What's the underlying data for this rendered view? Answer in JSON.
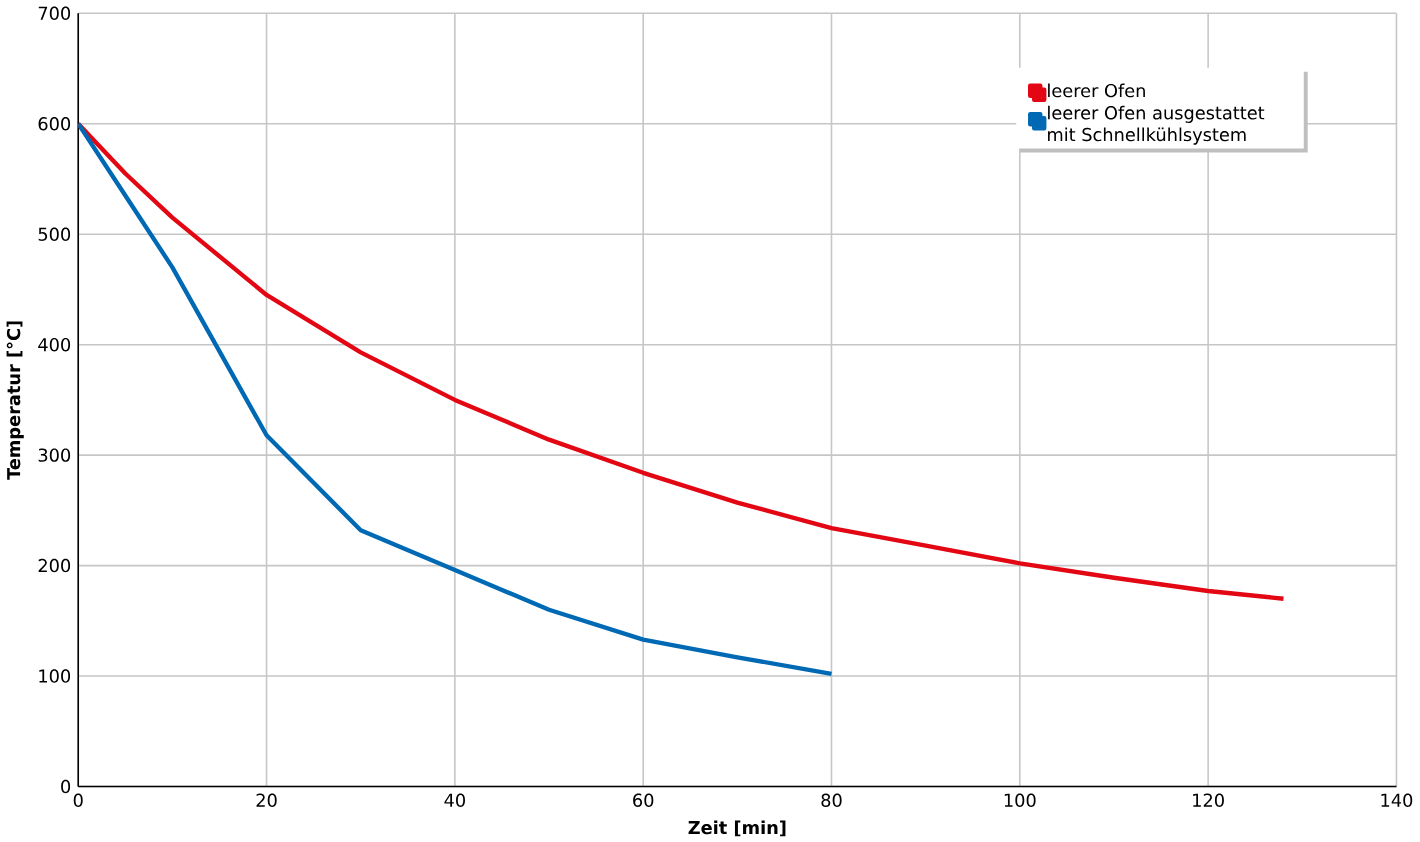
{
  "chart_data": {
    "type": "line",
    "xlabel": "Zeit [min]",
    "ylabel": "Temperatur [°C]",
    "xlim": [
      0,
      140
    ],
    "xticks": [
      0,
      20,
      40,
      60,
      80,
      100,
      120,
      140
    ],
    "ylim": [
      0,
      700
    ],
    "yticks": [
      0,
      100,
      200,
      300,
      400,
      500,
      600,
      700
    ],
    "grid": true,
    "legend": "top right",
    "marker": "none",
    "series": [
      {
        "name": "leerer Ofen",
        "color": "#e30613",
        "x": [
          0,
          5,
          10,
          20,
          30,
          40,
          50,
          60,
          70,
          80,
          90,
          100,
          110,
          120,
          128
        ],
        "values": [
          600,
          555,
          515,
          445,
          393,
          350,
          314,
          284,
          257,
          234,
          218,
          202,
          189,
          177,
          170
        ]
      },
      {
        "name": "leerer Ofen ausgestattet mit Schnellkühlsystem",
        "color": "#0069b4",
        "x": [
          0,
          5,
          10,
          20,
          30,
          40,
          50,
          60,
          70,
          80
        ],
        "values": [
          600,
          535,
          470,
          318,
          232,
          196,
          160,
          133,
          117,
          102
        ]
      }
    ]
  }
}
